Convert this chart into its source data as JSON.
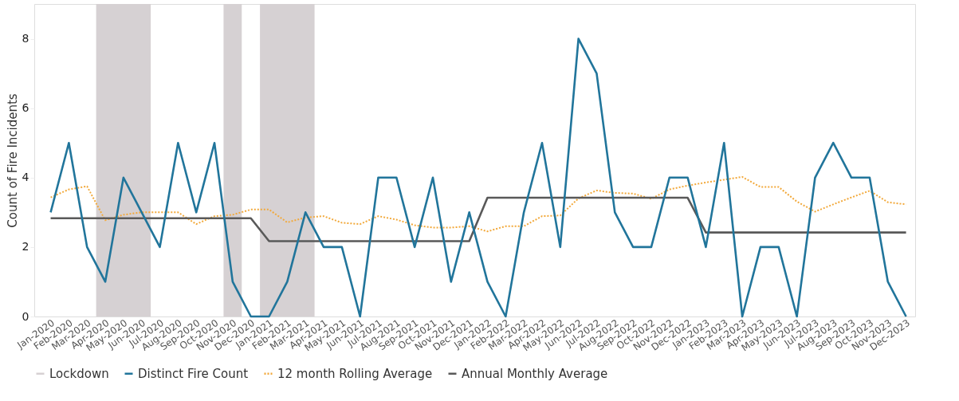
{
  "chart_data": {
    "type": "line",
    "ylabel": "Count of Fire Incidents",
    "categories": [
      "Jan-2020",
      "Feb-2020",
      "Mar-2020",
      "Apr-2020",
      "May-2020",
      "Jun-2020",
      "Jul-2020",
      "Aug-2020",
      "Sep-2020",
      "Oct-2020",
      "Nov-2020",
      "Dec-2020",
      "Jan-2021",
      "Feb-2021",
      "Mar-2021",
      "Apr-2021",
      "May-2021",
      "Jun-2021",
      "Jul-2021",
      "Aug-2021",
      "Sep-2021",
      "Oct-2021",
      "Nov-2021",
      "Dec-2021",
      "Jan-2022",
      "Feb-2022",
      "Mar-2022",
      "Apr-2022",
      "May-2022",
      "Jun-2022",
      "Jul-2022",
      "Aug-2022",
      "Sep-2022",
      "Oct-2022",
      "Nov-2022",
      "Dec-2022",
      "Jan-2023",
      "Feb-2023",
      "Mar-2023",
      "Apr-2023",
      "May-2023",
      "Jun-2023",
      "Jul-2023",
      "Aug-2023",
      "Sep-2023",
      "Oct-2023",
      "Nov-2023",
      "Dec-2023"
    ],
    "series": [
      {
        "name": "Distinct Fire Count",
        "color": "#21759b",
        "line_style": "solid",
        "values": [
          3,
          5,
          2,
          1,
          4,
          3,
          2,
          5,
          3,
          5,
          1,
          0,
          0,
          1,
          3,
          2,
          2,
          0,
          4,
          4,
          2,
          4,
          1,
          3,
          1,
          0,
          3,
          5,
          2,
          8,
          7,
          3,
          2,
          2,
          4,
          4,
          2,
          5,
          0,
          2,
          2,
          0,
          4,
          5,
          4,
          4,
          1,
          0
        ]
      },
      {
        "name": "12 month Rolling Average",
        "color": "#f2a93b",
        "line_style": "dotted",
        "values": [
          3.43,
          3.66,
          3.75,
          2.77,
          2.93,
          3.0,
          3.0,
          3.0,
          2.66,
          2.89,
          2.93,
          3.08,
          3.08,
          2.71,
          2.85,
          2.89,
          2.7,
          2.66,
          2.89,
          2.79,
          2.63,
          2.56,
          2.56,
          2.6,
          2.45,
          2.6,
          2.6,
          2.89,
          2.91,
          3.4,
          3.63,
          3.56,
          3.54,
          3.39,
          3.66,
          3.77,
          3.86,
          3.94,
          4.02,
          3.73,
          3.73,
          3.31,
          3.02,
          3.23,
          3.43,
          3.62,
          3.29,
          3.23
        ]
      },
      {
        "name": "Annual Monthly Average",
        "color": "#595959",
        "line_style": "solid",
        "values": [
          2.83,
          2.83,
          2.83,
          2.83,
          2.83,
          2.83,
          2.83,
          2.83,
          2.83,
          2.83,
          2.83,
          2.83,
          2.17,
          2.17,
          2.17,
          2.17,
          2.17,
          2.17,
          2.17,
          2.17,
          2.17,
          2.17,
          2.17,
          2.17,
          3.42,
          3.42,
          3.42,
          3.42,
          3.42,
          3.42,
          3.42,
          3.42,
          3.42,
          3.42,
          3.42,
          3.42,
          2.42,
          2.42,
          2.42,
          2.42,
          2.42,
          2.42,
          2.42,
          2.42,
          2.42,
          2.42,
          2.42,
          2.42
        ]
      }
    ],
    "bands": [
      {
        "axis": "x",
        "from": "Apr-2020",
        "to": "Jun-2020",
        "label": "Lockdown",
        "color": "#d6d1d3"
      },
      {
        "axis": "x",
        "from": "Nov-2020",
        "to": "Nov-2020",
        "color": "#d6d1d3"
      },
      {
        "axis": "x",
        "from": "Jan-2021",
        "to": "Mar-2021",
        "color": "#d6d1d3"
      }
    ],
    "ylim": [
      0,
      9
    ],
    "yticks": [
      0,
      2,
      4,
      6,
      8
    ],
    "grid": false,
    "legend": "bottom",
    "marker": "none"
  }
}
